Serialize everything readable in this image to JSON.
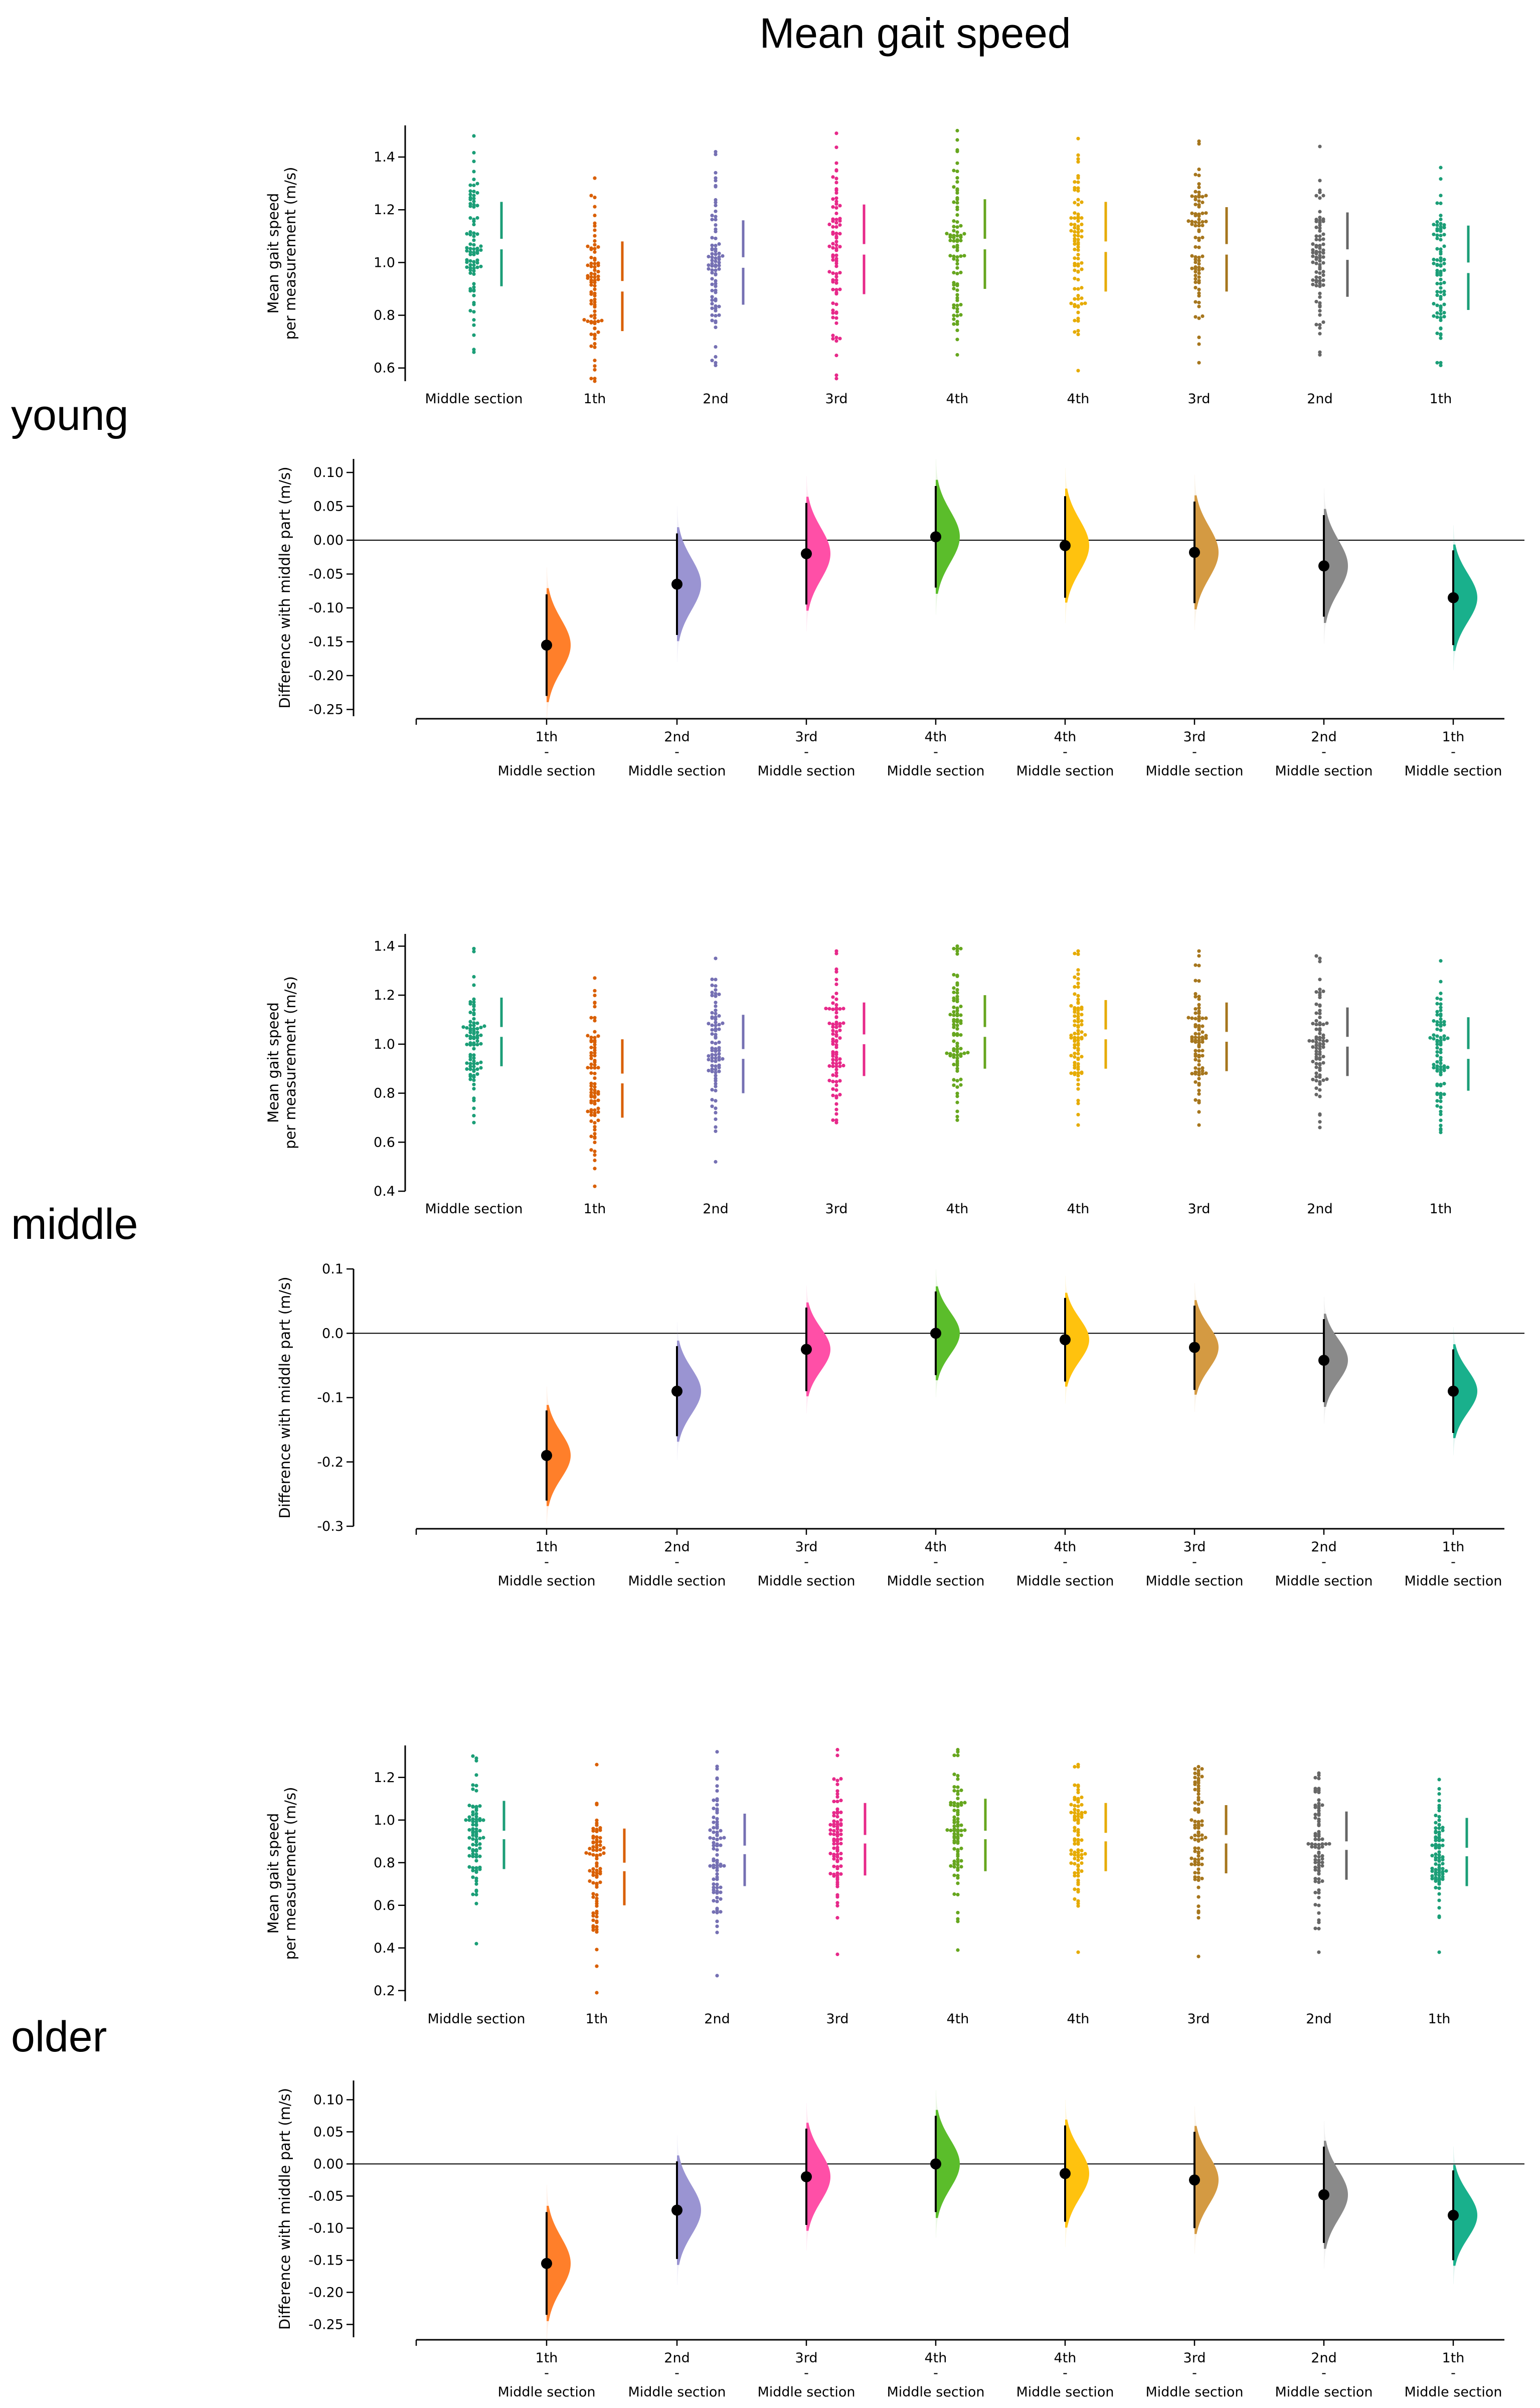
{
  "figure": {
    "title": "Mean gait speed",
    "colors": {
      "middle": "#1b9e77",
      "1th": "#d95f02",
      "2nd": "#7570b3",
      "3rd": "#e7298a",
      "4th": "#66a61e",
      "4th_r": "#e6ab02",
      "3rd_r": "#a6761d",
      "2nd_r": "#666666",
      "1th_r": "#1b9e77",
      "kde_1th": "#ff7f2a",
      "kde_2nd": "#9a94d2",
      "kde_3rd": "#ff4fa7",
      "kde_4th": "#5bbd2b",
      "kde_4th_r": "#ffc20e",
      "kde_3rd_r": "#d49a42",
      "kde_2nd_r": "#8a8a8a",
      "kde_1th_r": "#19b08c"
    }
  },
  "chart_data": [
    {
      "type": "scatter",
      "group": "young",
      "panel": "raw",
      "title": "",
      "ylabel": "Mean gait speed\nper measurement (m/s)",
      "ylim": [
        0.55,
        1.52
      ],
      "yticks": [
        0.6,
        0.8,
        1.0,
        1.2,
        1.4
      ],
      "ytick_labels": [
        "0.6",
        "0.8",
        "1.0",
        "1.2",
        "1.4"
      ],
      "categories": [
        "Middle section",
        "1th",
        "2nd",
        "3rd",
        "4th",
        "4th",
        "3rd",
        "2nd",
        "1th"
      ],
      "series": [
        {
          "name": "Middle section",
          "mean": 1.07,
          "sd": 0.16,
          "min": 0.66,
          "max": 1.48
        },
        {
          "name": "1th",
          "mean": 0.91,
          "sd": 0.17,
          "min": 0.55,
          "max": 1.32
        },
        {
          "name": "2nd",
          "mean": 1.0,
          "sd": 0.16,
          "min": 0.61,
          "max": 1.42
        },
        {
          "name": "3rd",
          "mean": 1.05,
          "sd": 0.17,
          "min": 0.56,
          "max": 1.49
        },
        {
          "name": "4th",
          "mean": 1.07,
          "sd": 0.17,
          "min": 0.65,
          "max": 1.5
        },
        {
          "name": "4th",
          "mean": 1.06,
          "sd": 0.17,
          "min": 0.59,
          "max": 1.47
        },
        {
          "name": "3rd",
          "mean": 1.05,
          "sd": 0.16,
          "min": 0.62,
          "max": 1.46
        },
        {
          "name": "2nd",
          "mean": 1.03,
          "sd": 0.16,
          "min": 0.65,
          "max": 1.44
        },
        {
          "name": "1th",
          "mean": 0.98,
          "sd": 0.16,
          "min": 0.61,
          "max": 1.36
        }
      ]
    },
    {
      "type": "area",
      "group": "young",
      "panel": "difference",
      "ylabel": "Difference with middle part (m/s)",
      "ylim": [
        -0.26,
        0.12
      ],
      "yticks": [
        -0.25,
        -0.2,
        -0.15,
        -0.1,
        -0.05,
        0.0,
        0.05,
        0.1
      ],
      "ytick_labels": [
        "-0.25",
        "-0.20",
        "-0.15",
        "-0.10",
        "-0.05",
        "0.00",
        "0.05",
        "0.10"
      ],
      "comparisons": [
        "1th",
        "2nd",
        "3rd",
        "4th",
        "4th",
        "3rd",
        "2nd",
        "1th"
      ],
      "reference": "Middle section",
      "separator": "-",
      "values": [
        {
          "label": "1th",
          "mean": -0.155,
          "ci": [
            -0.23,
            -0.08
          ]
        },
        {
          "label": "2nd",
          "mean": -0.065,
          "ci": [
            -0.14,
            0.01
          ]
        },
        {
          "label": "3rd",
          "mean": -0.02,
          "ci": [
            -0.095,
            0.055
          ]
        },
        {
          "label": "4th",
          "mean": 0.005,
          "ci": [
            -0.07,
            0.08
          ]
        },
        {
          "label": "4th",
          "mean": -0.008,
          "ci": [
            -0.085,
            0.065
          ]
        },
        {
          "label": "3rd",
          "mean": -0.018,
          "ci": [
            -0.093,
            0.057
          ]
        },
        {
          "label": "2nd",
          "mean": -0.038,
          "ci": [
            -0.113,
            0.037
          ]
        },
        {
          "label": "1th",
          "mean": -0.085,
          "ci": [
            -0.155,
            -0.015
          ]
        }
      ]
    },
    {
      "type": "scatter",
      "group": "middle",
      "panel": "raw",
      "ylabel": "Mean gait speed\nper measurement (m/s)",
      "ylim": [
        0.4,
        1.45
      ],
      "yticks": [
        0.4,
        0.6,
        0.8,
        1.0,
        1.2,
        1.4
      ],
      "ytick_labels": [
        "0.4",
        "0.6",
        "0.8",
        "1.0",
        "1.2",
        "1.4"
      ],
      "categories": [
        "Middle section",
        "1th",
        "2nd",
        "3rd",
        "4th",
        "4th",
        "3rd",
        "2nd",
        "1th"
      ],
      "series": [
        {
          "name": "Middle section",
          "mean": 1.05,
          "sd": 0.14,
          "min": 0.68,
          "max": 1.39
        },
        {
          "name": "1th",
          "mean": 0.86,
          "sd": 0.16,
          "min": 0.42,
          "max": 1.27
        },
        {
          "name": "2nd",
          "mean": 0.96,
          "sd": 0.16,
          "min": 0.52,
          "max": 1.35
        },
        {
          "name": "3rd",
          "mean": 1.02,
          "sd": 0.15,
          "min": 0.68,
          "max": 1.38
        },
        {
          "name": "4th",
          "mean": 1.05,
          "sd": 0.15,
          "min": 0.69,
          "max": 1.4
        },
        {
          "name": "4th",
          "mean": 1.04,
          "sd": 0.14,
          "min": 0.67,
          "max": 1.38
        },
        {
          "name": "3rd",
          "mean": 1.03,
          "sd": 0.14,
          "min": 0.67,
          "max": 1.38
        },
        {
          "name": "2nd",
          "mean": 1.01,
          "sd": 0.14,
          "min": 0.66,
          "max": 1.36
        },
        {
          "name": "1th",
          "mean": 0.96,
          "sd": 0.15,
          "min": 0.64,
          "max": 1.34
        }
      ]
    },
    {
      "type": "area",
      "group": "middle",
      "panel": "difference",
      "ylabel": "Difference with middle part (m/s)",
      "ylim": [
        -0.3,
        0.1
      ],
      "yticks": [
        -0.3,
        -0.2,
        -0.1,
        0.0,
        0.1
      ],
      "ytick_labels": [
        "-0.3",
        "-0.2",
        "-0.1",
        "0.0",
        "0.1"
      ],
      "comparisons": [
        "1th",
        "2nd",
        "3rd",
        "4th",
        "4th",
        "3rd",
        "2nd",
        "1th"
      ],
      "reference": "Middle section",
      "separator": "-",
      "values": [
        {
          "label": "1th",
          "mean": -0.19,
          "ci": [
            -0.26,
            -0.12
          ]
        },
        {
          "label": "2nd",
          "mean": -0.09,
          "ci": [
            -0.16,
            -0.02
          ]
        },
        {
          "label": "3rd",
          "mean": -0.025,
          "ci": [
            -0.09,
            0.04
          ]
        },
        {
          "label": "4th",
          "mean": 0.0,
          "ci": [
            -0.065,
            0.065
          ]
        },
        {
          "label": "4th",
          "mean": -0.01,
          "ci": [
            -0.075,
            0.055
          ]
        },
        {
          "label": "3rd",
          "mean": -0.022,
          "ci": [
            -0.088,
            0.043
          ]
        },
        {
          "label": "2nd",
          "mean": -0.042,
          "ci": [
            -0.107,
            0.022
          ]
        },
        {
          "label": "1th",
          "mean": -0.09,
          "ci": [
            -0.155,
            -0.025
          ]
        }
      ]
    },
    {
      "type": "scatter",
      "group": "older",
      "panel": "raw",
      "ylabel": "Mean gait speed\nper measurement (m/s)",
      "ylim": [
        0.15,
        1.35
      ],
      "yticks": [
        0.2,
        0.4,
        0.6,
        0.8,
        1.0,
        1.2
      ],
      "ytick_labels": [
        "0.2",
        "0.4",
        "0.6",
        "0.8",
        "1.0",
        "1.2"
      ],
      "categories": [
        "Middle section",
        "1th",
        "2nd",
        "3rd",
        "4th",
        "4th",
        "3rd",
        "2nd",
        "1th"
      ],
      "series": [
        {
          "name": "Middle section",
          "mean": 0.93,
          "sd": 0.16,
          "min": 0.42,
          "max": 1.3
        },
        {
          "name": "1th",
          "mean": 0.78,
          "sd": 0.18,
          "min": 0.19,
          "max": 1.26
        },
        {
          "name": "2nd",
          "mean": 0.86,
          "sd": 0.17,
          "min": 0.27,
          "max": 1.32
        },
        {
          "name": "3rd",
          "mean": 0.91,
          "sd": 0.17,
          "min": 0.37,
          "max": 1.33
        },
        {
          "name": "4th",
          "mean": 0.93,
          "sd": 0.17,
          "min": 0.39,
          "max": 1.33
        },
        {
          "name": "4th",
          "mean": 0.92,
          "sd": 0.16,
          "min": 0.38,
          "max": 1.26
        },
        {
          "name": "3rd",
          "mean": 0.91,
          "sd": 0.16,
          "min": 0.36,
          "max": 1.25
        },
        {
          "name": "2nd",
          "mean": 0.88,
          "sd": 0.16,
          "min": 0.38,
          "max": 1.22
        },
        {
          "name": "1th",
          "mean": 0.85,
          "sd": 0.16,
          "min": 0.38,
          "max": 1.19
        }
      ]
    },
    {
      "type": "area",
      "group": "older",
      "panel": "difference",
      "ylabel": "Difference with middle part (m/s)",
      "ylim": [
        -0.27,
        0.13
      ],
      "yticks": [
        -0.25,
        -0.2,
        -0.15,
        -0.1,
        -0.05,
        0.0,
        0.05,
        0.1
      ],
      "ytick_labels": [
        "-0.25",
        "-0.20",
        "-0.15",
        "-0.10",
        "-0.05",
        "0.00",
        "0.05",
        "0.10"
      ],
      "comparisons": [
        "1th",
        "2nd",
        "3rd",
        "4th",
        "4th",
        "3rd",
        "2nd",
        "1th"
      ],
      "reference": "Middle section",
      "separator": "-",
      "values": [
        {
          "label": "1th",
          "mean": -0.155,
          "ci": [
            -0.235,
            -0.075
          ]
        },
        {
          "label": "2nd",
          "mean": -0.072,
          "ci": [
            -0.148,
            0.004
          ]
        },
        {
          "label": "3rd",
          "mean": -0.02,
          "ci": [
            -0.095,
            0.055
          ]
        },
        {
          "label": "4th",
          "mean": 0.0,
          "ci": [
            -0.075,
            0.075
          ]
        },
        {
          "label": "4th",
          "mean": -0.015,
          "ci": [
            -0.09,
            0.06
          ]
        },
        {
          "label": "3rd",
          "mean": -0.025,
          "ci": [
            -0.1,
            0.05
          ]
        },
        {
          "label": "2nd",
          "mean": -0.048,
          "ci": [
            -0.123,
            0.027
          ]
        },
        {
          "label": "1th",
          "mean": -0.08,
          "ci": [
            -0.15,
            -0.01
          ]
        }
      ]
    }
  ]
}
